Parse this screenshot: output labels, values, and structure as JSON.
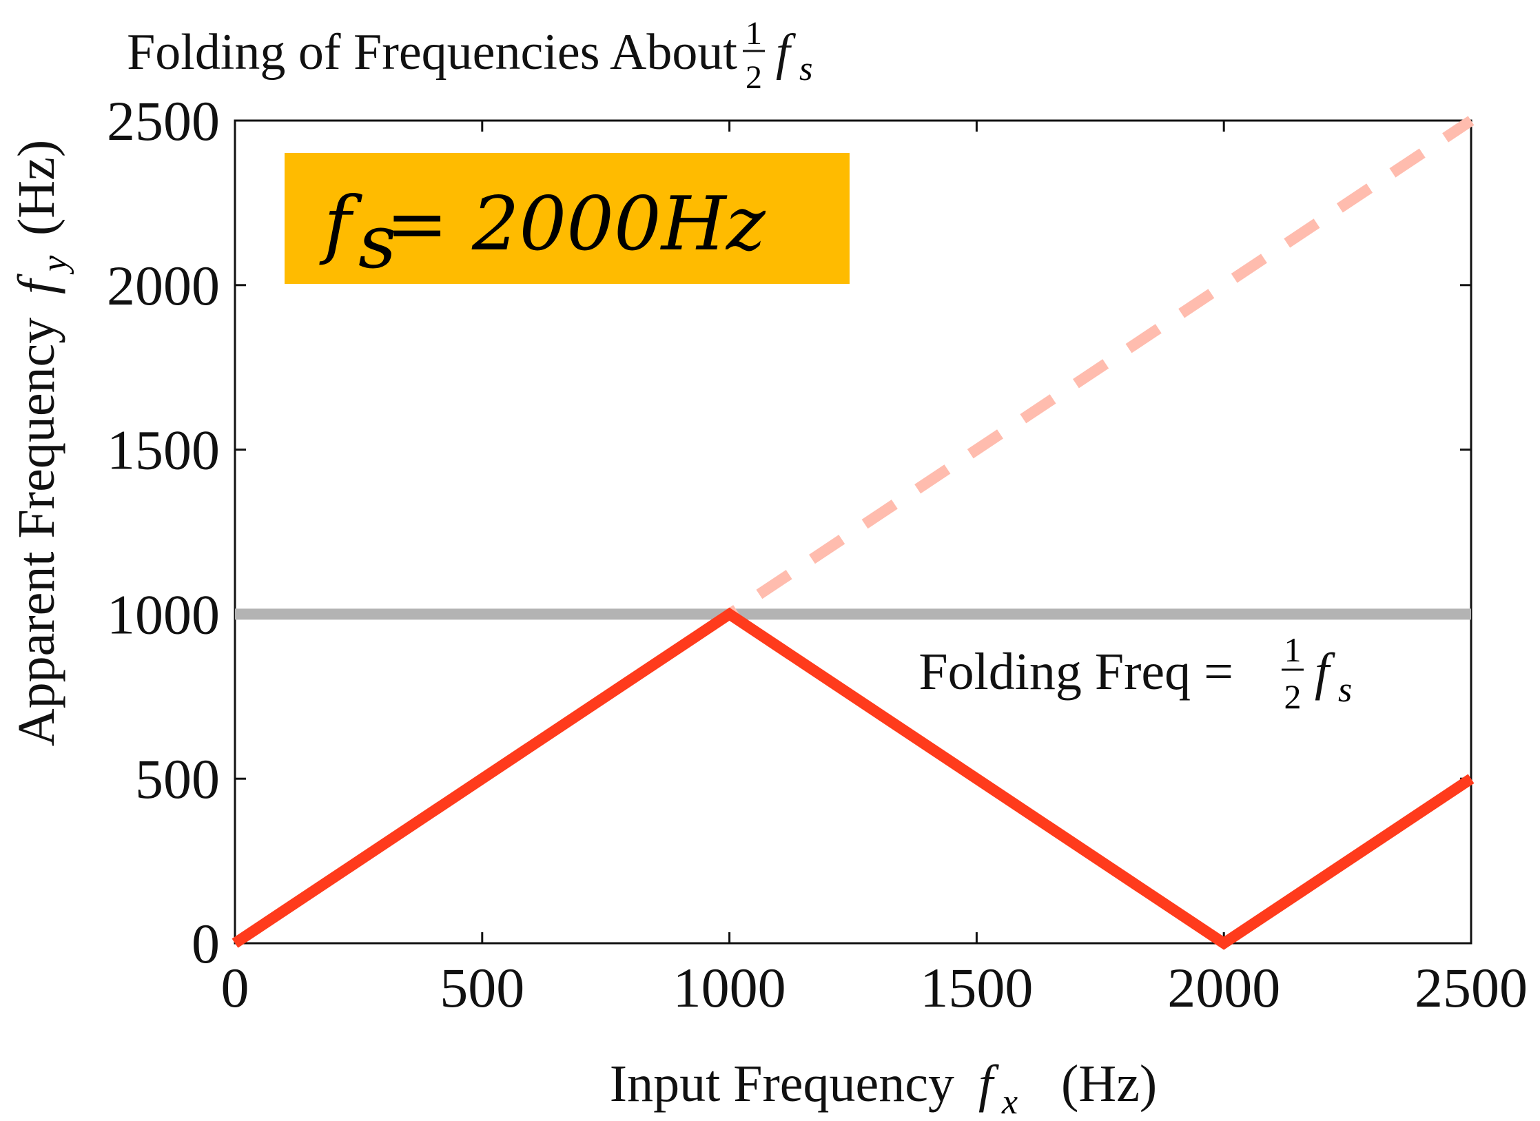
{
  "chart_data": {
    "type": "line",
    "title": {
      "main": "Folding of Frequencies About",
      "frac_num": "1",
      "frac_den": "2",
      "var": "f",
      "sub": "s"
    },
    "xlabel": {
      "text": "Input Frequency",
      "var": "f",
      "sub": "x",
      "unit": "(Hz)"
    },
    "ylabel": {
      "text": "Apparent Frequency",
      "var": "f",
      "sub": "y",
      "unit": "(Hz)"
    },
    "xlim": [
      0,
      2500
    ],
    "ylim": [
      0,
      2500
    ],
    "xticks": [
      0,
      500,
      1000,
      1500,
      2000,
      2500
    ],
    "yticks": [
      0,
      500,
      1000,
      1500,
      2000,
      2500
    ],
    "grid": false,
    "colors": {
      "folded": "#ff3b1c",
      "unfolded": "#ffbcae",
      "folding_line": "#b3b3b3",
      "badge": "#ffbb00"
    },
    "series": [
      {
        "style": "solid",
        "color_key": "folded",
        "x": [
          0,
          1000,
          2000,
          2500
        ],
        "y": [
          0,
          1000,
          0,
          500
        ]
      },
      {
        "style": "dashed",
        "color_key": "unfolded",
        "x": [
          1000,
          2500
        ],
        "y": [
          1000,
          2500
        ]
      }
    ],
    "folding_line": {
      "y": 1000
    },
    "annotation": {
      "text": "Folding Freq =",
      "frac_num": "1",
      "frac_den": "2",
      "var": "f",
      "sub": "s"
    },
    "badge": {
      "var": "f",
      "sub": "s",
      "rest": " = 2000Hz"
    }
  }
}
